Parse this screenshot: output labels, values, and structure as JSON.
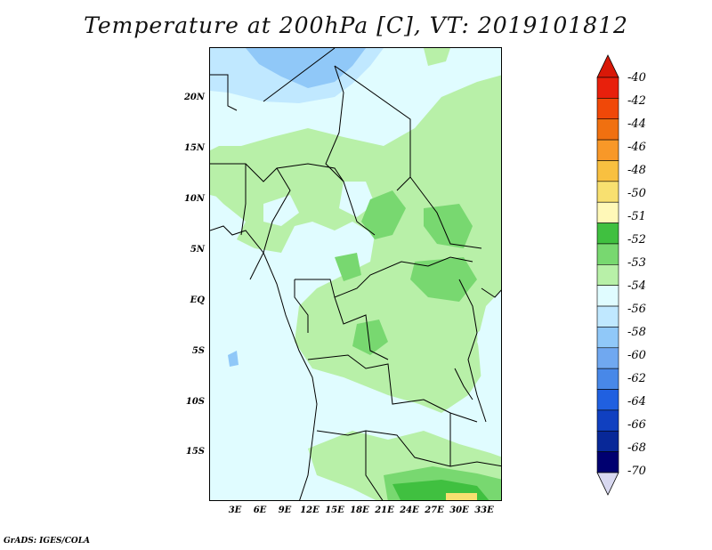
{
  "title": "Temperature at 200hPa [C], VT: 2019101812",
  "credit": "GrADS: IGES/COLA",
  "map": {
    "variable": "Temperature at 200hPa",
    "units": "C",
    "valid_time": "2019101812",
    "lat_labels": [
      "20N",
      "15N",
      "10N",
      "5N",
      "EQ",
      "5S",
      "10S",
      "15S"
    ],
    "lon_labels": [
      "3E",
      "6E",
      "9E",
      "12E",
      "15E",
      "18E",
      "21E",
      "24E",
      "27E",
      "30E",
      "33E"
    ]
  },
  "colorbar": {
    "labels": [
      "-40",
      "-42",
      "-44",
      "-46",
      "-48",
      "-50",
      "-51",
      "-52",
      "-53",
      "-54",
      "-56",
      "-58",
      "-60",
      "-62",
      "-64",
      "-66",
      "-68",
      "-70"
    ],
    "colors": [
      "#e8200c",
      "#f04808",
      "#f07010",
      "#f89828",
      "#f8c040",
      "#f8e070",
      "#fff8b8",
      "#40c040",
      "#78d870",
      "#b8f0a8",
      "#e0fcff",
      "#c0e8ff",
      "#90c8f8",
      "#70a8f0",
      "#4888e8",
      "#2060e0",
      "#1040c0",
      "#082898",
      "#000070"
    ],
    "top_color": "#d81808",
    "bottom_color": "#d8d8f0"
  }
}
